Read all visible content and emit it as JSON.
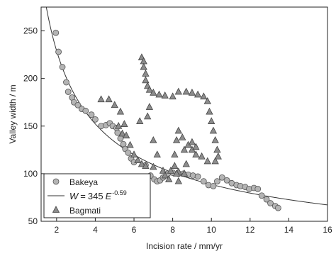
{
  "chart_data": {
    "type": "scatter",
    "xlabel": "Incision rate / mm/yr",
    "ylabel": "Valley width / m",
    "xlim": [
      1.2,
      16
    ],
    "ylim": [
      50,
      275
    ],
    "xticks": [
      2,
      4,
      6,
      8,
      10,
      12,
      14,
      16
    ],
    "yticks": [
      50,
      100,
      150,
      200,
      250
    ],
    "legend": "lower left",
    "series": [
      {
        "name": "Bakeya",
        "marker": "circle",
        "color": "#b4b4b4",
        "x": [
          1.96,
          2.1,
          2.3,
          2.5,
          2.6,
          2.8,
          2.9,
          3.1,
          3.3,
          3.5,
          3.8,
          4.0,
          4.3,
          4.55,
          4.75,
          4.9,
          5.1,
          5.15,
          5.3,
          5.45,
          5.55,
          5.7,
          5.85,
          6.0,
          6.6,
          6.85,
          7.05,
          7.2,
          7.35,
          7.5,
          7.75,
          8.0,
          8.3,
          8.55,
          8.8,
          9.05,
          9.3,
          9.6,
          9.85,
          10.1,
          10.3,
          10.55,
          10.8,
          11.05,
          11.3,
          11.5,
          11.75,
          11.95,
          12.2,
          12.4,
          12.6,
          12.85,
          13.05,
          13.3,
          13.45
        ],
        "y": [
          248,
          228,
          212,
          196,
          186,
          180,
          175,
          172,
          168,
          166,
          162,
          157,
          150,
          151,
          153,
          150,
          148,
          143,
          137,
          131,
          126,
          122,
          116,
          112,
          109,
          98,
          94,
          92,
          93,
          96,
          100,
          101,
          100,
          100,
          99,
          98,
          97,
          92,
          88,
          87,
          92,
          96,
          93,
          90,
          88,
          87,
          86,
          84,
          85,
          84,
          77,
          73,
          69,
          66,
          64
        ]
      },
      {
        "name": "Bagmati",
        "marker": "triangle",
        "color": "#8c8c8c",
        "x": [
          4.3,
          4.7,
          5.0,
          5.2,
          5.3,
          5.4,
          5.5,
          5.6,
          5.8,
          6.0,
          6.2,
          6.4,
          6.6,
          7.0,
          7.5,
          7.9,
          8.3,
          8.6,
          6.4,
          6.5,
          6.5,
          6.6,
          6.6,
          6.7,
          6.8,
          7.0,
          7.3,
          7.6,
          8.0,
          8.3,
          8.7,
          9.0,
          9.3,
          9.6,
          9.8,
          9.9,
          10.0,
          10.1,
          10.2,
          10.3,
          10.35,
          10.2,
          9.8,
          9.5,
          9.2,
          9.0,
          8.8,
          8.5,
          8.3,
          8.2,
          8.1,
          8.1,
          8.2,
          8.3,
          6.7,
          6.8,
          7.0,
          7.2,
          7.6,
          7.8,
          9.0,
          9.2,
          8.6,
          8.7,
          6.3
        ],
        "y": [
          178,
          178,
          172,
          150,
          165,
          142,
          152,
          140,
          130,
          120,
          114,
          110,
          108,
          107,
          103,
          103,
          102,
          100,
          222,
          218,
          212,
          205,
          198,
          192,
          188,
          185,
          183,
          182,
          181,
          186,
          186,
          185,
          183,
          181,
          176,
          165,
          155,
          145,
          135,
          125,
          118,
          113,
          113,
          118,
          120,
          125,
          130,
          138,
          145,
          135,
          120,
          108,
          100,
          92,
          160,
          170,
          135,
          120,
          98,
          94,
          133,
          128,
          125,
          110,
          155
        ]
      }
    ],
    "fit": {
      "lhs": "W",
      "operator": "=",
      "coefficient": 345,
      "base": "E",
      "exponent": -0.59,
      "color": "#333333"
    }
  }
}
